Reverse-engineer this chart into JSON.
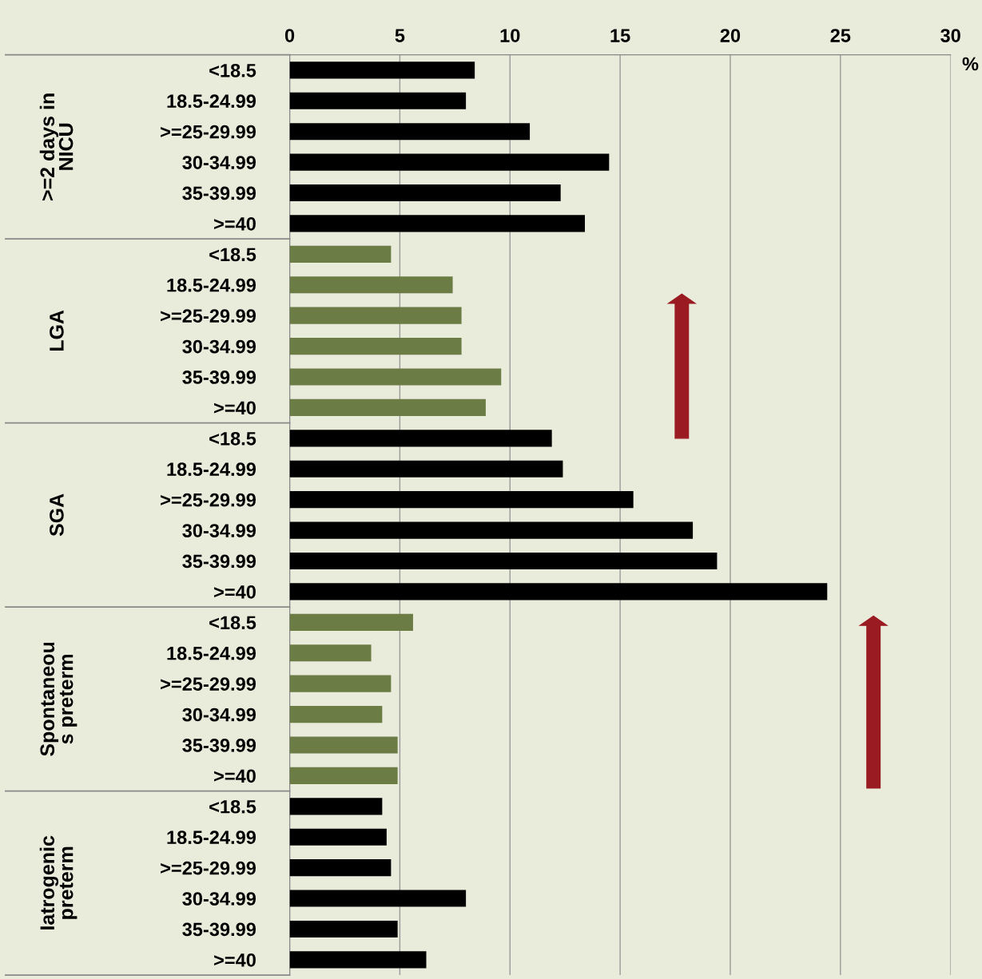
{
  "chart_data": {
    "type": "bar",
    "orientation": "horizontal",
    "categories": [
      "<18.5",
      "18.5-24.99",
      ">=25-29.99",
      "30-34.99",
      "35-39.99",
      ">=40",
      "<18.5",
      "18.5-24.99",
      ">=25-29.99",
      "30-34.99",
      "35-39.99",
      ">=40",
      "<18.5",
      "18.5-24.99",
      ">=25-29.99",
      "30-34.99",
      "35-39.99",
      ">=40",
      "<18.5",
      "18.5-24.99",
      ">=25-29.99",
      "30-34.99",
      "35-39.99",
      ">=40",
      "<18.5",
      "18.5-24.99",
      ">=25-29.99",
      "30-34.99",
      "35-39.99",
      ">=40"
    ],
    "values": [
      8.4,
      8.0,
      10.9,
      14.5,
      12.3,
      13.4,
      4.6,
      7.4,
      7.8,
      7.8,
      9.6,
      8.9,
      11.9,
      12.4,
      15.6,
      18.3,
      19.4,
      24.4,
      5.6,
      3.7,
      4.6,
      4.2,
      4.9,
      4.9,
      4.2,
      4.4,
      4.6,
      8.0,
      4.9,
      6.2
    ],
    "colors": [
      "#000000",
      "#000000",
      "#000000",
      "#000000",
      "#000000",
      "#000000",
      "#6b7d45",
      "#6b7d45",
      "#6b7d45",
      "#6b7d45",
      "#6b7d45",
      "#6b7d45",
      "#000000",
      "#000000",
      "#000000",
      "#000000",
      "#000000",
      "#000000",
      "#6b7d45",
      "#6b7d45",
      "#6b7d45",
      "#6b7d45",
      "#6b7d45",
      "#6b7d45",
      "#000000",
      "#000000",
      "#000000",
      "#000000",
      "#000000",
      "#000000"
    ],
    "annotations": [
      ">=2 days in\nNICU",
      "LGA",
      "SGA",
      "Spontaneou\ns preterm",
      "Iatrogenic\npreterm"
    ],
    "xlabel": "%",
    "xlim": [
      0,
      30
    ],
    "xticks": [
      0,
      5,
      10,
      15,
      20,
      25,
      30
    ],
    "grid": "x"
  }
}
